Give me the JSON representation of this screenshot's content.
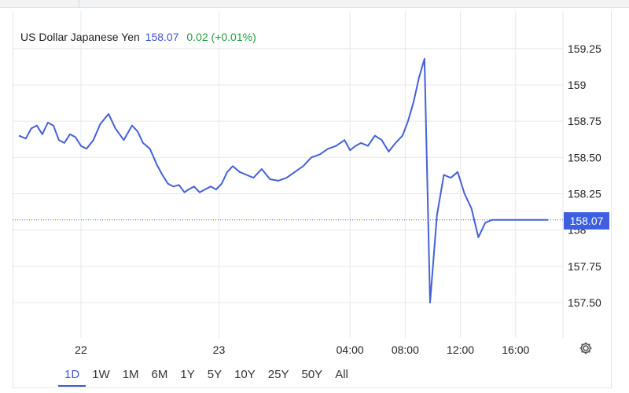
{
  "header": {
    "symbol_name": "US Dollar Japanese Yen",
    "last_price": "158.07",
    "change": "0.02 (+0.01%)"
  },
  "price_tag": "158.07",
  "range_tabs": [
    "1D",
    "1W",
    "1M",
    "6M",
    "1Y",
    "5Y",
    "10Y",
    "25Y",
    "50Y",
    "All"
  ],
  "active_range": "1D",
  "colors": {
    "line": "#4361d8",
    "price_tag": "#3d5fe0",
    "change_positive": "#1e9e3a",
    "active_tab": "#3b56d4"
  },
  "icons": {
    "settings": "gear-icon"
  },
  "chart_data": {
    "type": "line",
    "title": "",
    "xlabel": "",
    "ylabel": "",
    "ylim": [
      157.25,
      159.35
    ],
    "y_ticks": [
      157.5,
      157.75,
      158.0,
      158.25,
      158.5,
      158.75,
      159.0,
      159.25
    ],
    "y_tick_labels": [
      "157.50",
      "157.75",
      "158",
      "158.25",
      "158.50",
      "158.75",
      "159",
      "159.25"
    ],
    "x_ticks": [
      {
        "hours": 4.5,
        "label": "22"
      },
      {
        "hours": 14.5,
        "label": "23"
      },
      {
        "hours": 24,
        "label": "04:00"
      },
      {
        "hours": 28,
        "label": "08:00"
      },
      {
        "hours": 32,
        "label": "12:00"
      },
      {
        "hours": 36,
        "label": "16:00"
      }
    ],
    "last_value": 158.07,
    "grid": true,
    "series": [
      {
        "x": [
          0.0,
          0.5,
          0.9,
          1.3,
          1.7,
          2.1,
          2.5,
          2.9,
          3.3,
          3.7,
          4.1,
          4.5,
          4.9,
          5.4,
          5.9,
          6.5,
          7.0,
          7.6,
          8.2,
          8.6,
          9.0,
          9.5,
          10.0,
          10.4,
          10.8,
          11.2,
          11.6,
          12.0,
          12.3,
          12.7,
          13.1,
          13.5,
          13.9,
          14.3,
          14.7,
          15.1,
          15.5,
          16.0,
          16.5,
          17.0,
          17.6,
          18.2,
          18.8,
          19.4,
          20.0,
          20.6,
          21.2,
          21.8,
          22.4,
          23.0,
          23.6,
          24.0,
          24.4,
          24.8,
          25.3,
          25.8,
          26.3,
          26.8,
          27.3,
          27.8,
          28.2,
          28.6,
          29.0,
          29.4,
          29.8,
          30.3,
          30.8,
          31.3,
          31.8,
          32.3,
          32.8,
          33.3,
          33.8,
          34.3,
          34.8,
          35.3,
          35.8,
          36.0,
          36.2,
          36.4,
          36.6,
          36.8,
          37.0,
          37.2,
          37.4,
          37.6,
          37.8,
          38.0,
          38.2,
          38.35
        ],
        "values": [
          158.65,
          158.63,
          158.7,
          158.72,
          158.66,
          158.74,
          158.72,
          158.62,
          158.6,
          158.66,
          158.64,
          158.58,
          158.56,
          158.62,
          158.73,
          158.8,
          158.7,
          158.62,
          158.72,
          158.68,
          158.6,
          158.56,
          158.45,
          158.38,
          158.32,
          158.3,
          158.31,
          158.26,
          158.28,
          158.3,
          158.26,
          158.28,
          158.3,
          158.28,
          158.32,
          158.4,
          158.44,
          158.4,
          158.38,
          158.36,
          158.42,
          158.35,
          158.34,
          158.36,
          158.4,
          158.44,
          158.5,
          158.52,
          158.56,
          158.58,
          158.62,
          158.55,
          158.58,
          158.6,
          158.58,
          158.65,
          158.62,
          158.54,
          158.6,
          158.65,
          158.75,
          158.88,
          159.05,
          159.18,
          157.5,
          158.1,
          158.38,
          158.36,
          158.4,
          158.25,
          158.15,
          157.95,
          158.05,
          158.07,
          158.07,
          158.07,
          158.07,
          158.07,
          158.07,
          158.07,
          158.07,
          158.07,
          158.07,
          158.07,
          158.07,
          158.07,
          158.07,
          158.07,
          158.07,
          158.07
        ]
      }
    ]
  }
}
